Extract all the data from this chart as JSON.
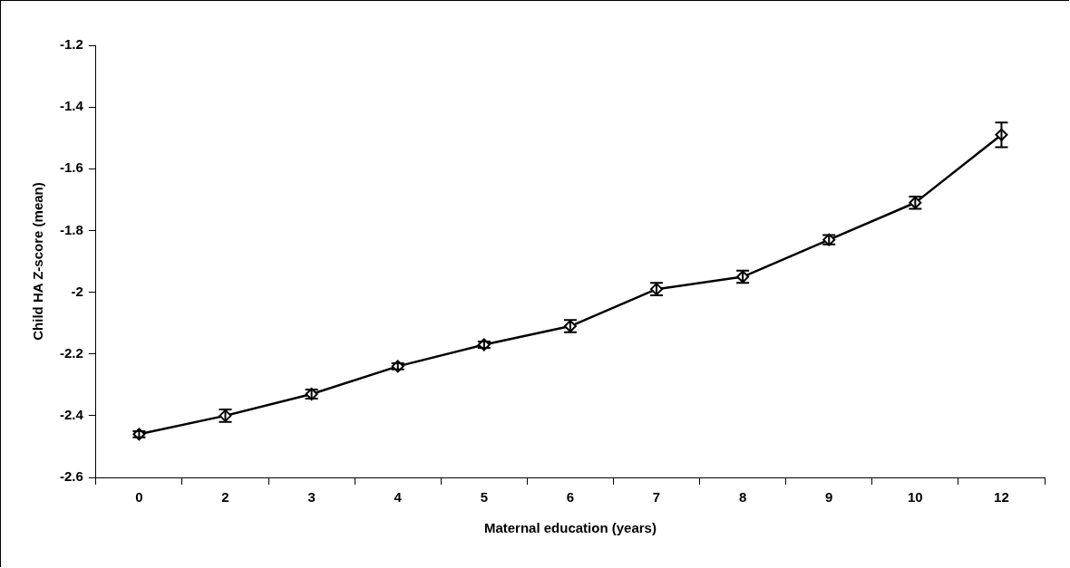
{
  "chart_data": {
    "type": "line",
    "xlabel": "Maternal education (years)",
    "ylabel": "Child HA Z-score (mean)",
    "categories": [
      "0",
      "2",
      "3",
      "4",
      "5",
      "6",
      "7",
      "8",
      "9",
      "10",
      "12"
    ],
    "series": [
      {
        "color": "#000000",
        "values": [
          -2.46,
          -2.4,
          -2.33,
          -2.24,
          -2.17,
          -2.11,
          -1.99,
          -1.95,
          -1.83,
          -1.71,
          -1.49
        ],
        "errors": [
          0.01,
          0.02,
          0.015,
          0.01,
          0.01,
          0.02,
          0.02,
          0.02,
          0.015,
          0.02,
          0.04
        ]
      }
    ],
    "ylim": [
      -2.6,
      -1.2
    ],
    "yticks": [
      -2.6,
      -2.4,
      -2.2,
      -2,
      -1.8,
      -1.6,
      -1.4,
      -1.2
    ],
    "grid": false,
    "legend": false,
    "marker": "diamond",
    "line_style": "solid"
  }
}
